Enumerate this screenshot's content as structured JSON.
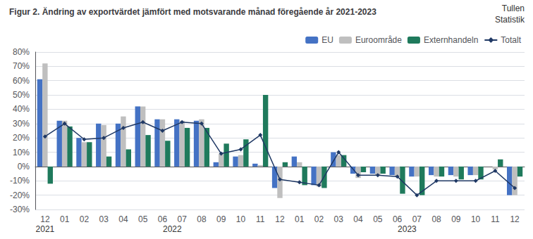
{
  "chart_data": {
    "type": "bar",
    "title": "Figur 2. Ändring av exportvärdet jämfört med motsvarande månad föregående år 2021-2023",
    "annotations": [
      {
        "text": "2021",
        "x": 0
      },
      {
        "text": "2022",
        "x": 6.5
      },
      {
        "text": "2023",
        "x": 18.5
      },
      {
        "text": "Tullen"
      },
      {
        "text": "Statistik"
      }
    ],
    "categories": [
      "12",
      "01",
      "02",
      "03",
      "04",
      "05",
      "06",
      "07",
      "08",
      "09",
      "10",
      "11",
      "12",
      "01",
      "02",
      "03",
      "04",
      "05",
      "06",
      "07",
      "08",
      "09",
      "10",
      "11",
      "12"
    ],
    "series": [
      {
        "name": "EU",
        "color": "#4472C4",
        "values": [
          61,
          32,
          20,
          30,
          30,
          42,
          33,
          33,
          32,
          3,
          7,
          2,
          -15,
          7,
          -13,
          10,
          -5,
          -5,
          -6,
          -7,
          -6,
          -6,
          -6,
          0,
          -20
        ]
      },
      {
        "name": "Euroområde",
        "color": "#BFBFBF",
        "values": [
          72,
          32,
          17,
          29,
          35,
          42,
          33,
          32,
          33,
          9,
          8,
          1,
          -22,
          3,
          -14,
          8,
          -8,
          -6,
          -7,
          -7,
          -7,
          -7,
          -6,
          -2,
          -20
        ]
      },
      {
        "name": "Externhandeln",
        "color": "#1F7A5C",
        "values": [
          -12,
          28,
          17,
          7,
          12,
          22,
          18,
          27,
          27,
          16,
          19,
          50,
          3,
          -13,
          -15,
          8,
          -4,
          -5,
          -19,
          -20,
          -7,
          -9,
          -9,
          5,
          -7
        ]
      },
      {
        "name": "Totalt",
        "type": "line",
        "marker": "diamond",
        "color": "#1F3864",
        "values": [
          21,
          30,
          19,
          20,
          27,
          31,
          25,
          31,
          30,
          9,
          12,
          22,
          -9,
          -11,
          -13,
          10,
          -6,
          -6,
          -7,
          -20,
          -10,
          -10,
          -10,
          -3,
          -15
        ]
      }
    ],
    "ylim": [
      -30,
      80
    ],
    "yticks": [
      {
        "value": -30,
        "label": "-30%"
      },
      {
        "value": -20,
        "label": "-20%"
      },
      {
        "value": -10,
        "label": "-10%"
      },
      {
        "value": 0,
        "label": "0%"
      },
      {
        "value": 10,
        "label": "10%"
      },
      {
        "value": 20,
        "label": "20%"
      },
      {
        "value": 30,
        "label": "30%"
      },
      {
        "value": 40,
        "label": "40%"
      },
      {
        "value": 50,
        "label": "50%"
      },
      {
        "value": 60,
        "label": "60%"
      },
      {
        "value": 70,
        "label": "70%"
      },
      {
        "value": 80,
        "label": "80%"
      }
    ],
    "grid": true,
    "legend": "upper right"
  }
}
